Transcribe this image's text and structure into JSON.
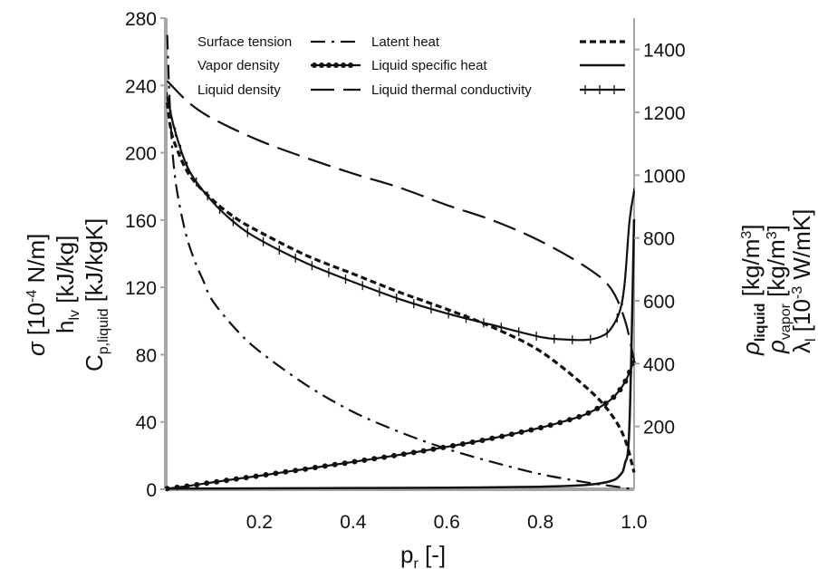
{
  "chart_data": {
    "type": "line",
    "x_axis": {
      "label": "p",
      "label_sub": "r",
      "label_suffix": " [-]",
      "range": [
        0.0,
        1.0
      ],
      "ticks": [
        "0.2",
        "0.4",
        "0.6",
        "0.8",
        "1.0"
      ]
    },
    "y_left": {
      "range": [
        0,
        280
      ],
      "ticks": [
        "0",
        "40",
        "80",
        "120",
        "160",
        "200",
        "240",
        "280"
      ],
      "labels": {
        "l1_a": "σ",
        "l1_b": " [10",
        "l1_sup": "-4",
        "l1_c": " N/m]",
        "l2_a": "h",
        "l2_sub": "lv",
        "l2_b": " [kJ/kg]",
        "l3_a": "C",
        "l3_sub": "p,liquid",
        "l3_b": " [kJ/kgK]"
      }
    },
    "y_right": {
      "range": [
        0,
        1500
      ],
      "ticks": [
        "200",
        "400",
        "600",
        "800",
        "1000",
        "1200",
        "1400"
      ],
      "labels": {
        "r1_a": "ρ",
        "r1_sub": "liquid",
        "r1_b": " [kg/m",
        "r1_sup": "3",
        "r1_c": "]",
        "r2_a": "ρ",
        "r2_sub": "vapor",
        "r2_b": " [kg/m",
        "r2_sup": "3",
        "r2_c": "]",
        "r3_a": "λ",
        "r3_sub": "l",
        "r3_b": " [10",
        "r3_sup": "-3",
        "r3_c": " W/mK]"
      }
    },
    "legend": {
      "placement": "top",
      "entries": [
        "Surface tension",
        "Latent heat",
        "Vapor density",
        "Liquid specific heat",
        "Liquid density",
        "Liquid thermal conductivity"
      ]
    },
    "series": [
      {
        "name": "Surface tension",
        "axis": "left",
        "style": "dashdot",
        "x": [
          0.003,
          0.01,
          0.02,
          0.04,
          0.06,
          0.08,
          0.1,
          0.15,
          0.2,
          0.3,
          0.4,
          0.5,
          0.6,
          0.7,
          0.8,
          0.9,
          0.95,
          1.0
        ],
        "y": [
          270,
          220,
          185,
          155,
          137,
          124,
          112,
          95,
          82,
          62,
          46,
          34,
          24,
          16,
          9,
          4,
          2,
          0
        ]
      },
      {
        "name": "Latent heat",
        "axis": "left",
        "style": "dotted",
        "x": [
          0.003,
          0.01,
          0.02,
          0.05,
          0.1,
          0.15,
          0.2,
          0.3,
          0.4,
          0.5,
          0.6,
          0.7,
          0.8,
          0.9,
          0.95,
          0.98,
          1.0
        ],
        "y": [
          230,
          215,
          205,
          187,
          172,
          161,
          153,
          139,
          128,
          117,
          107,
          96,
          82,
          60,
          45,
          30,
          10
        ]
      },
      {
        "name": "Vapor density",
        "axis": "right",
        "style": "line-dots",
        "x": [
          0.003,
          0.05,
          0.1,
          0.15,
          0.2,
          0.3,
          0.4,
          0.5,
          0.6,
          0.7,
          0.8,
          0.85,
          0.9,
          0.95,
          0.98,
          1.0
        ],
        "y": [
          2,
          11,
          22,
          33,
          43,
          65,
          87,
          110,
          135,
          163,
          196,
          216,
          241,
          285,
          340,
          410
        ]
      },
      {
        "name": "Liquid specific heat",
        "axis": "right",
        "style": "solid",
        "x": [
          0.003,
          0.2,
          0.4,
          0.6,
          0.8,
          0.9,
          0.95,
          0.97,
          0.98,
          0.99,
          1.0
        ],
        "y": [
          2,
          3,
          4,
          5,
          8,
          14,
          26,
          45,
          80,
          200,
          860
        ]
      },
      {
        "name": "Liquid density",
        "axis": "right",
        "style": "longdash",
        "x": [
          0.003,
          0.05,
          0.1,
          0.2,
          0.3,
          0.4,
          0.5,
          0.6,
          0.7,
          0.8,
          0.9,
          0.95,
          0.98,
          1.0
        ],
        "y": [
          1300,
          1230,
          1180,
          1110,
          1055,
          1005,
          960,
          905,
          855,
          790,
          705,
          640,
          540,
          410
        ]
      },
      {
        "name": "Liquid thermal conductivity",
        "axis": "right",
        "style": "line-plus",
        "x": [
          0.003,
          0.02,
          0.05,
          0.1,
          0.15,
          0.2,
          0.3,
          0.4,
          0.5,
          0.6,
          0.7,
          0.8,
          0.85,
          0.9,
          0.93,
          0.95,
          0.97,
          0.98,
          0.99,
          1.0
        ],
        "y": [
          1250,
          1140,
          1015,
          915,
          845,
          795,
          720,
          660,
          605,
          560,
          522,
          485,
          477,
          476,
          487,
          510,
          570,
          660,
          850,
          950
        ]
      }
    ]
  }
}
